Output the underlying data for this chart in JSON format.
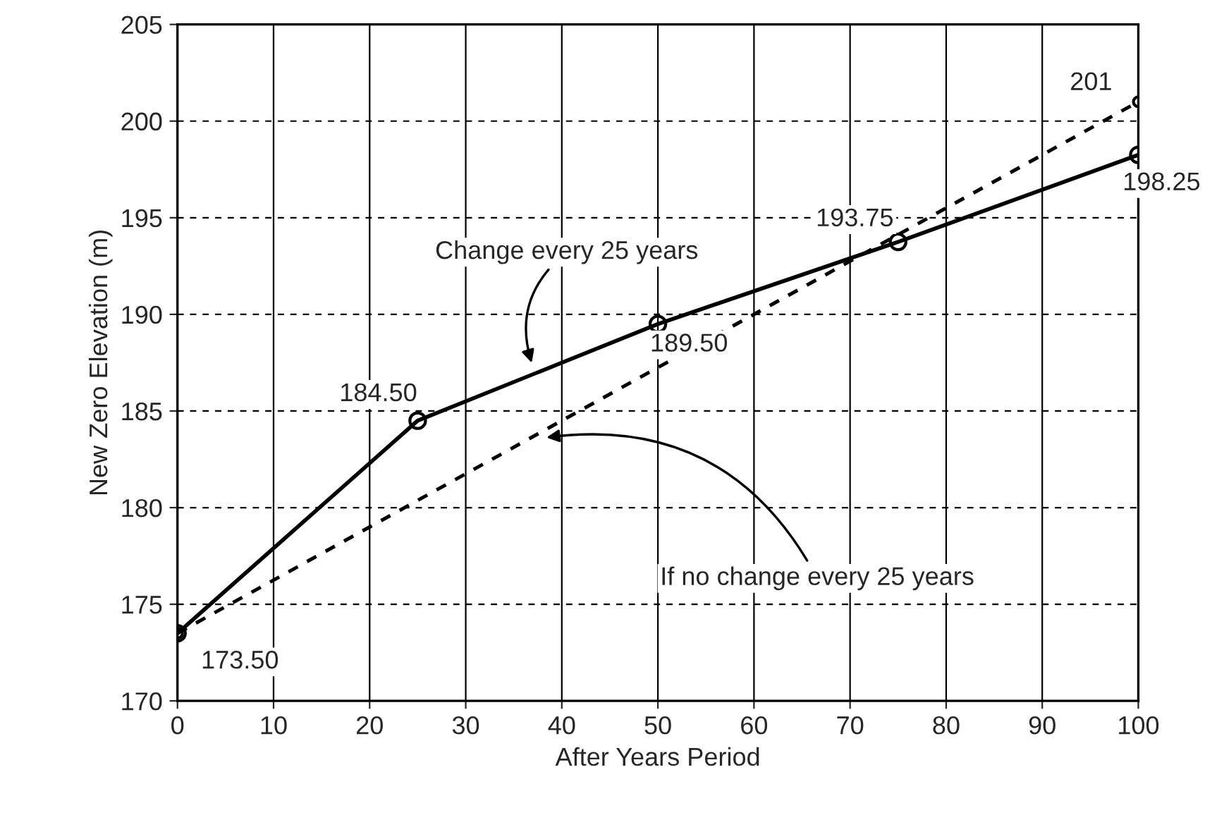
{
  "chart_data": {
    "type": "line",
    "xlabel": "After Years Period",
    "ylabel": "New Zero Elevation (m)",
    "x": [
      0,
      25,
      50,
      75,
      100
    ],
    "series": [
      {
        "color": "#000000",
        "values": [
          173.5,
          184.5,
          189.5,
          193.75,
          198.25
        ],
        "value_labels": [
          "173.50",
          "184.50",
          "189.50",
          "193.75",
          "198.25"
        ],
        "line_style": "solid",
        "marker": "circle"
      },
      {
        "color": "#000000",
        "x": [
          0,
          100
        ],
        "values": [
          173.5,
          201
        ],
        "value_labels": [
          null,
          "201"
        ],
        "line_style": "dashed",
        "marker": "circle"
      }
    ],
    "annotations": [
      {
        "text": "Change every 25 years",
        "x": 37,
        "y": 187.3
      },
      {
        "text": "If no change every 25 years",
        "x": 38,
        "y": 183.6
      }
    ],
    "xlim": [
      0,
      100
    ],
    "xticks": [
      0,
      10,
      20,
      30,
      40,
      50,
      60,
      70,
      80,
      90,
      100
    ],
    "ylim": [
      170,
      205
    ],
    "yticks": [
      170,
      175,
      180,
      185,
      190,
      195,
      200,
      205
    ],
    "grid": true,
    "legend": false
  }
}
